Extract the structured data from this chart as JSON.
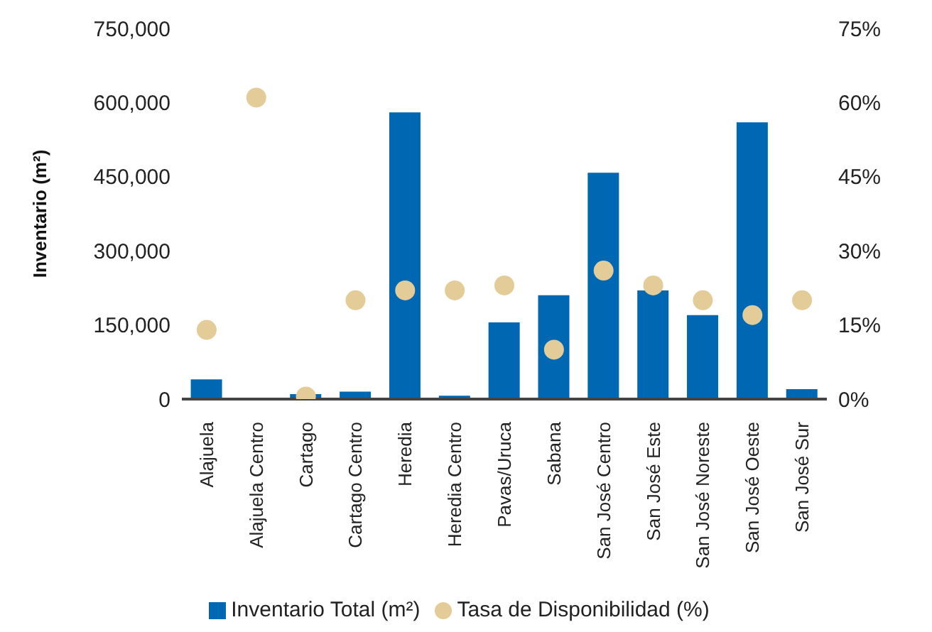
{
  "chart_data": {
    "type": "bar",
    "ylabel": "Inventario (m²)",
    "categories": [
      "Alajuela",
      "Alajuela Centro",
      "Cartago",
      "Cartago Centro",
      "Heredia",
      "Heredia Centro",
      "Pavas/Uruca",
      "Sabana",
      "San José Centro",
      "San José Este",
      "San José Noreste",
      "San José Oeste",
      "San José Sur"
    ],
    "series": [
      {
        "name": "Inventario Total (m²)",
        "color": "#0068b3",
        "values": [
          40000,
          1000,
          10000,
          15000,
          580000,
          7000,
          155000,
          210000,
          458000,
          220000,
          170000,
          560000,
          20000
        ]
      },
      {
        "name": "Tasa de Disponibilidad (%)",
        "type": "scatter",
        "axis": "y2",
        "color": "#e3cc98",
        "values": [
          14,
          61,
          0.5,
          20,
          22,
          22,
          23,
          10,
          26,
          23,
          20,
          17,
          20
        ]
      }
    ],
    "ylim": [
      0,
      750000
    ],
    "yticks": [
      0,
      {
        "value": 150000,
        "label": "150,000"
      },
      {
        "value": 300000,
        "label": "300,000"
      },
      {
        "value": 450000,
        "label": "450,000"
      },
      {
        "value": 600000,
        "label": "600,000"
      },
      {
        "value": 750000,
        "label": "750,000"
      }
    ],
    "y2lim": [
      0,
      75
    ],
    "y2ticks": [
      {
        "value": 0,
        "label": "0%"
      },
      {
        "value": 15,
        "label": "15%"
      },
      {
        "value": 30,
        "label": "30%"
      },
      {
        "value": 45,
        "label": "45%"
      },
      {
        "value": 60,
        "label": "60%"
      },
      {
        "value": 75,
        "label": "75%"
      }
    ],
    "grid": false,
    "legend": "bottom",
    "marker": "circle"
  }
}
